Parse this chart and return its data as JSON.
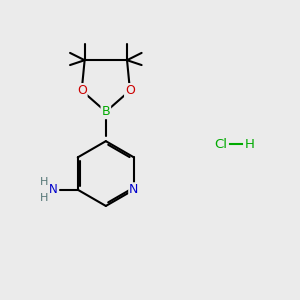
{
  "background_color": "#ebebeb",
  "fig_size": [
    3.0,
    3.0
  ],
  "dpi": 100,
  "bond_color": "#000000",
  "bond_width": 1.5,
  "atom_colors": {
    "C": "#000000",
    "N": "#0000cc",
    "O": "#cc0000",
    "B": "#00aa00",
    "H": "#557777",
    "Cl": "#00aa00"
  },
  "font_size_atom": 8.5,
  "hcl_color": "#00aa00",
  "hcl_font_size": 9.5
}
